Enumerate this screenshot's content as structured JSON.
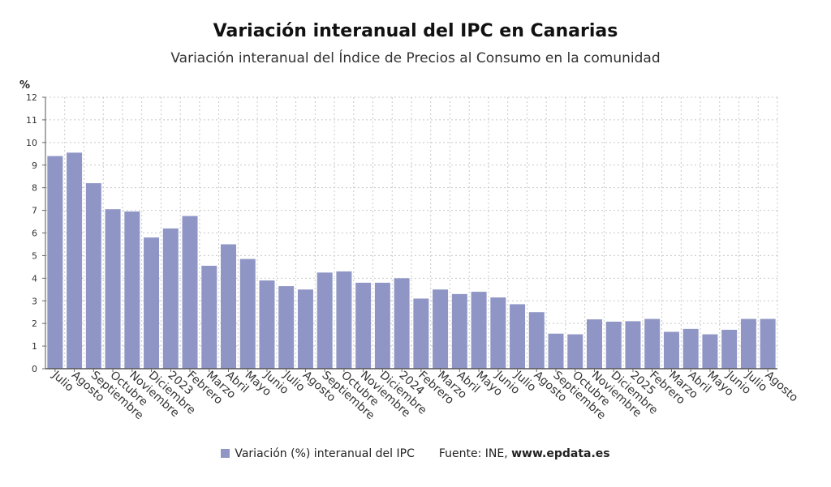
{
  "chart_data": {
    "type": "bar",
    "title": "Variación interanual del IPC en Canarias",
    "subtitle": "Variación interanual del Índice de Precios al Consumo en la comunidad",
    "ylabel": "%",
    "xlabel": "",
    "ylim": [
      0,
      12
    ],
    "yticks": [
      0,
      1,
      2,
      3,
      4,
      5,
      6,
      7,
      8,
      9,
      10,
      11,
      12
    ],
    "grid": true,
    "color": "#8f96c5",
    "categories": [
      "Julio",
      "Agosto",
      "Septiembre",
      "Octubre",
      "Noviembre",
      "Diciembre",
      "2023",
      "Febrero",
      "Marzo",
      "Abril",
      "Mayo",
      "Junio",
      "Julio",
      "Agosto",
      "Septiembre",
      "Octubre",
      "Noviembre",
      "Diciembre",
      "2024",
      "Febrero",
      "Marzo",
      "Abril",
      "Mayo",
      "Junio",
      "Julio",
      "Agosto",
      "Septiembre",
      "Octubre",
      "Noviembre",
      "Diciembre",
      "2025",
      "Febrero",
      "Marzo",
      "Abril",
      "Mayo",
      "Junio",
      "Julio",
      "Agosto"
    ],
    "series": [
      {
        "name": "Variación (%) interanual del IPC",
        "values": [
          9.4,
          9.55,
          8.2,
          7.05,
          6.95,
          5.8,
          6.2,
          6.75,
          4.55,
          5.5,
          4.85,
          3.9,
          3.65,
          3.5,
          4.25,
          4.3,
          3.8,
          3.8,
          4.0,
          3.1,
          3.5,
          3.3,
          3.4,
          3.15,
          2.85,
          2.5,
          1.55,
          1.52,
          2.18,
          2.08,
          2.1,
          2.2,
          1.63,
          1.76,
          1.52,
          1.72,
          2.2,
          2.2
        ]
      }
    ]
  },
  "legend": {
    "series_label": "Variación (%) interanual del IPC",
    "source_prefix": "Fuente: INE, ",
    "source_site": "www.epdata.es"
  }
}
